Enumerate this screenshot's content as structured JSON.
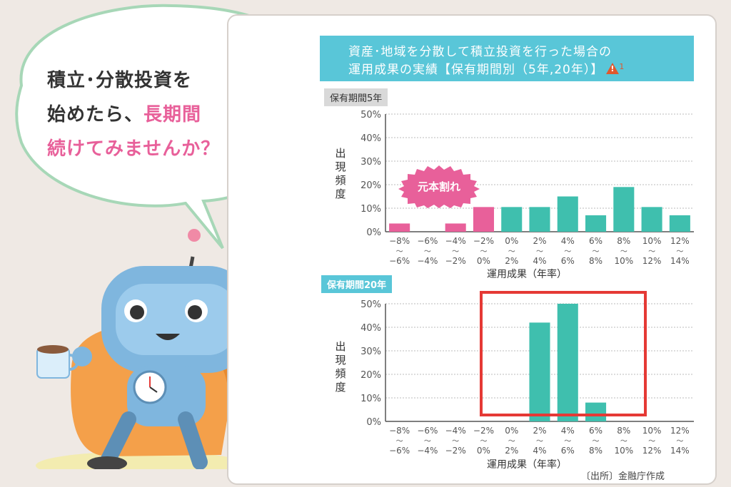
{
  "speech": {
    "line1": "積立･分散投資を",
    "line2_plain": "始めたら、",
    "line2_pink": "長期間",
    "line3": "続けてみませんか？"
  },
  "header": {
    "line1": "資産･地域を分散して積立投資を行った場合の",
    "line2": "運用成果の実績【保有期間別（5年,20年）】",
    "warning_number": "1"
  },
  "badge": {
    "label": "元本割れ"
  },
  "source": "〔出所〕金融庁作成",
  "colors": {
    "loss": "#e8609a",
    "gain": "#3fbfae",
    "header": "#59c6d8",
    "highlight": "#e53935"
  },
  "chart_data": [
    {
      "type": "bar",
      "panel_label": "保有期間5年",
      "ylabel": "出現頻度",
      "xlabel": "運用成果（年率）",
      "ylim": [
        0,
        50
      ],
      "yticks": [
        "0%",
        "10%",
        "20%",
        "30%",
        "40%",
        "50%"
      ],
      "categories": [
        {
          "top": "−8%",
          "mid": "〜",
          "bot": "−6%"
        },
        {
          "top": "−6%",
          "mid": "〜",
          "bot": "−4%"
        },
        {
          "top": "−4%",
          "mid": "〜",
          "bot": "−2%"
        },
        {
          "top": "−2%",
          "mid": "〜",
          "bot": "0%"
        },
        {
          "top": "0%",
          "mid": "〜",
          "bot": "2%"
        },
        {
          "top": "2%",
          "mid": "〜",
          "bot": "4%"
        },
        {
          "top": "4%",
          "mid": "〜",
          "bot": "6%"
        },
        {
          "top": "6%",
          "mid": "〜",
          "bot": "8%"
        },
        {
          "top": "8%",
          "mid": "〜",
          "bot": "10%"
        },
        {
          "top": "10%",
          "mid": "〜",
          "bot": "12%"
        },
        {
          "top": "12%",
          "mid": "〜",
          "bot": "14%"
        }
      ],
      "values": [
        3.5,
        0,
        3.5,
        10.5,
        10.5,
        10.5,
        15,
        7,
        19,
        10.5,
        7
      ],
      "loss_count": 4
    },
    {
      "type": "bar",
      "panel_label": "保有期間20年",
      "ylabel": "出現頻度",
      "xlabel": "運用成果（年率）",
      "ylim": [
        0,
        50
      ],
      "yticks": [
        "0%",
        "10%",
        "20%",
        "30%",
        "40%",
        "50%"
      ],
      "categories": [
        {
          "top": "−8%",
          "mid": "〜",
          "bot": "−6%"
        },
        {
          "top": "−6%",
          "mid": "〜",
          "bot": "−4%"
        },
        {
          "top": "−4%",
          "mid": "〜",
          "bot": "−2%"
        },
        {
          "top": "−2%",
          "mid": "〜",
          "bot": "0%"
        },
        {
          "top": "0%",
          "mid": "〜",
          "bot": "2%"
        },
        {
          "top": "2%",
          "mid": "〜",
          "bot": "4%"
        },
        {
          "top": "4%",
          "mid": "〜",
          "bot": "6%"
        },
        {
          "top": "6%",
          "mid": "〜",
          "bot": "8%"
        },
        {
          "top": "8%",
          "mid": "〜",
          "bot": "10%"
        },
        {
          "top": "10%",
          "mid": "〜",
          "bot": "12%"
        },
        {
          "top": "12%",
          "mid": "〜",
          "bot": "14%"
        }
      ],
      "values": [
        0,
        0,
        0,
        0,
        0,
        42,
        50,
        8,
        0,
        0,
        0
      ],
      "loss_count": 4
    }
  ]
}
